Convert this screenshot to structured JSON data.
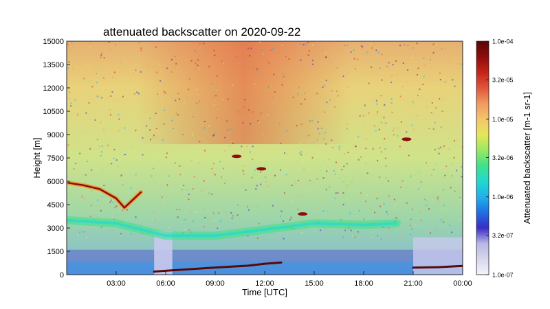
{
  "chart_data": {
    "type": "heatmap",
    "title": "attenuated backscatter on 2020-09-22",
    "xlabel": "Time [UTC]",
    "ylabel": "Height [m]",
    "x_unit": "hours UTC",
    "xlim": [
      0,
      24
    ],
    "ylim": [
      0,
      15000
    ],
    "x_ticks": [
      {
        "value": 3,
        "label": "03:00"
      },
      {
        "value": 6,
        "label": "06:00"
      },
      {
        "value": 9,
        "label": "09:00"
      },
      {
        "value": 12,
        "label": "12:00"
      },
      {
        "value": 15,
        "label": "15:00"
      },
      {
        "value": 18,
        "label": "18:00"
      },
      {
        "value": 21,
        "label": "21:00"
      },
      {
        "value": 24,
        "label": "00:00"
      }
    ],
    "y_ticks": [
      {
        "value": 0,
        "label": "0"
      },
      {
        "value": 1500,
        "label": "1500"
      },
      {
        "value": 3000,
        "label": "3000"
      },
      {
        "value": 4500,
        "label": "4500"
      },
      {
        "value": 6000,
        "label": "6000"
      },
      {
        "value": 7500,
        "label": "7500"
      },
      {
        "value": 9000,
        "label": "9000"
      },
      {
        "value": 10500,
        "label": "10500"
      },
      {
        "value": 12000,
        "label": "12000"
      },
      {
        "value": 13500,
        "label": "13500"
      },
      {
        "value": 15000,
        "label": "15000"
      }
    ],
    "colorbar": {
      "label": "Attenuated backscatter [m-1 sr-1]",
      "scale": "log",
      "range": [
        1e-07,
        0.0001
      ],
      "ticks": [
        {
          "value": 0.0001,
          "label": "1.0e-04"
        },
        {
          "value": 3.2e-05,
          "label": "3.2e-05"
        },
        {
          "value": 1e-05,
          "label": "1.0e-05"
        },
        {
          "value": 3.2e-06,
          "label": "3.2e-06"
        },
        {
          "value": 1e-06,
          "label": "1.0e-06"
        },
        {
          "value": 3.2e-07,
          "label": "3.2e-07"
        },
        {
          "value": 1e-07,
          "label": "1.0e-07"
        }
      ],
      "colors": [
        "#f4f4fb",
        "#d6d6ef",
        "#b8b8e3",
        "#3b2cc8",
        "#1f6fe6",
        "#1fb2ea",
        "#22d8d0",
        "#3fe28a",
        "#9ae860",
        "#e6e65a",
        "#f5c46a",
        "#f09a60",
        "#e2553a",
        "#c42418",
        "#8e0c0c",
        "#5a0606"
      ]
    },
    "features": {
      "boundary_layer_top": [
        {
          "t": 5.3,
          "h": 200
        },
        {
          "t": 7,
          "h": 320
        },
        {
          "t": 9,
          "h": 460
        },
        {
          "t": 11,
          "h": 580
        },
        {
          "t": 12,
          "h": 700
        },
        {
          "t": 13,
          "h": 780
        },
        {
          "t": 21.0,
          "h": 450
        },
        {
          "t": 22.5,
          "h": 480
        },
        {
          "t": 24,
          "h": 560
        }
      ],
      "residual_cloud_layer": [
        {
          "t": 0.1,
          "h": 5900
        },
        {
          "t": 1,
          "h": 5750
        },
        {
          "t": 2,
          "h": 5500
        },
        {
          "t": 3,
          "h": 4900
        },
        {
          "t": 3.5,
          "h": 4300
        },
        {
          "t": 4,
          "h": 4800
        },
        {
          "t": 4.5,
          "h": 5300
        }
      ],
      "aerosol_layer": [
        {
          "t": 0,
          "h": 3500
        },
        {
          "t": 3,
          "h": 3300
        },
        {
          "t": 6,
          "h": 2500
        },
        {
          "t": 9,
          "h": 2500
        },
        {
          "t": 12,
          "h": 2900
        },
        {
          "t": 15,
          "h": 3300
        },
        {
          "t": 18,
          "h": 3200
        },
        {
          "t": 20,
          "h": 3300
        }
      ],
      "cloud_patches": [
        {
          "t": 20.6,
          "h": 8700
        },
        {
          "t": 14.3,
          "h": 3900
        },
        {
          "t": 11.8,
          "h": 6800
        },
        {
          "t": 10.3,
          "h": 7600
        }
      ]
    }
  }
}
